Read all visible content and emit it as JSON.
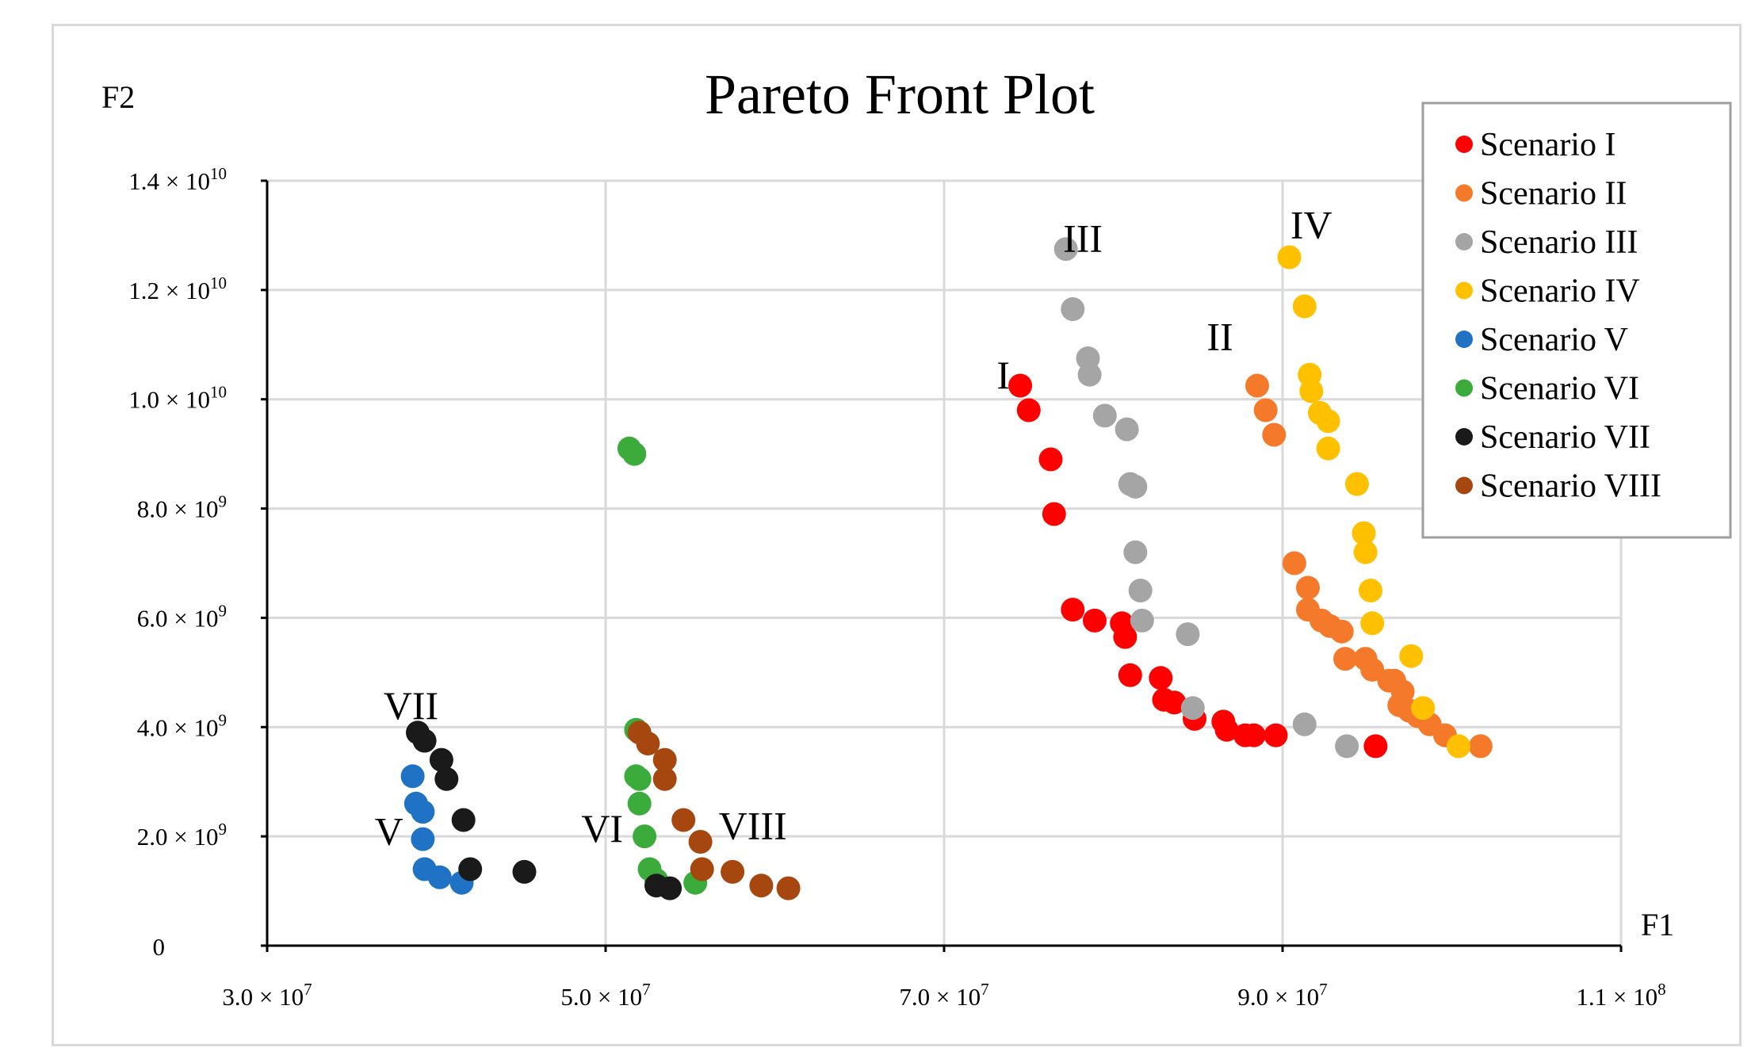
{
  "chart_data": {
    "type": "scatter",
    "title": "Pareto Front Plot",
    "xlabel": "F1",
    "ylabel": "F2",
    "xlim": [
      30000000,
      110000000
    ],
    "ylim": [
      0,
      14000000000
    ],
    "grid": true,
    "legend_position": "top-right",
    "x_ticks": [
      {
        "value": 30000000,
        "mant": "3.0 × 10",
        "exp": "7"
      },
      {
        "value": 50000000,
        "mant": "5.0 × 10",
        "exp": "7"
      },
      {
        "value": 70000000,
        "mant": "7.0 × 10",
        "exp": "7"
      },
      {
        "value": 90000000,
        "mant": "9.0 × 10",
        "exp": "7"
      },
      {
        "value": 110000000,
        "mant": "1.1 × 10",
        "exp": "8"
      }
    ],
    "y_ticks": [
      {
        "value": 0,
        "mant": "0",
        "exp": ""
      },
      {
        "value": 2000000000,
        "mant": "2.0 × 10",
        "exp": "9"
      },
      {
        "value": 4000000000,
        "mant": "4.0 × 10",
        "exp": "9"
      },
      {
        "value": 6000000000,
        "mant": "6.0 × 10",
        "exp": "9"
      },
      {
        "value": 8000000000,
        "mant": "8.0 × 10",
        "exp": "9"
      },
      {
        "value": 10000000000,
        "mant": "1.0 × 10",
        "exp": "10"
      },
      {
        "value": 12000000000,
        "mant": "1.2 × 10",
        "exp": "10"
      },
      {
        "value": 14000000000,
        "mant": "1.4 × 10",
        "exp": "10"
      }
    ],
    "series": [
      {
        "name": "Scenario I",
        "color": "#ff0000",
        "annotation": "I",
        "annotation_at": [
          73500000,
          10200000000
        ],
        "points": [
          [
            74500000,
            10250000000
          ],
          [
            75000000,
            9800000000
          ],
          [
            76300000,
            8900000000
          ],
          [
            76500000,
            7900000000
          ],
          [
            77600000,
            6150000000
          ],
          [
            78900000,
            5950000000
          ],
          [
            80500000,
            5900000000
          ],
          [
            80700000,
            5650000000
          ],
          [
            81000000,
            4950000000
          ],
          [
            82800000,
            4900000000
          ],
          [
            83000000,
            4500000000
          ],
          [
            83600000,
            4450000000
          ],
          [
            84800000,
            4150000000
          ],
          [
            86500000,
            4100000000
          ],
          [
            86700000,
            3950000000
          ],
          [
            87800000,
            3850000000
          ],
          [
            88300000,
            3850000000
          ],
          [
            89600000,
            3850000000
          ],
          [
            95500000,
            3650000000
          ]
        ]
      },
      {
        "name": "Scenario II",
        "color": "#f4792a",
        "annotation": "II",
        "annotation_at": [
          86300000,
          10900000000
        ],
        "points": [
          [
            88500000,
            10250000000
          ],
          [
            89000000,
            9800000000
          ],
          [
            89500000,
            9350000000
          ],
          [
            90700000,
            7000000000
          ],
          [
            91500000,
            6550000000
          ],
          [
            91500000,
            6150000000
          ],
          [
            92300000,
            5950000000
          ],
          [
            92800000,
            5850000000
          ],
          [
            93500000,
            5750000000
          ],
          [
            93700000,
            5250000000
          ],
          [
            94900000,
            5250000000
          ],
          [
            95300000,
            5050000000
          ],
          [
            96300000,
            4850000000
          ],
          [
            96600000,
            4850000000
          ],
          [
            96900000,
            4400000000
          ],
          [
            97100000,
            4650000000
          ],
          [
            97500000,
            4300000000
          ],
          [
            98000000,
            4200000000
          ],
          [
            98700000,
            4050000000
          ],
          [
            99600000,
            3850000000
          ],
          [
            101700000,
            3650000000
          ]
        ]
      },
      {
        "name": "Scenario III",
        "color": "#a5a5a5",
        "annotation": "III",
        "annotation_at": [
          78200000,
          12700000000
        ],
        "points": [
          [
            77200000,
            12750000000
          ],
          [
            77600000,
            11650000000
          ],
          [
            78500000,
            10750000000
          ],
          [
            78600000,
            10450000000
          ],
          [
            79500000,
            9700000000
          ],
          [
            80800000,
            9450000000
          ],
          [
            81000000,
            8450000000
          ],
          [
            81300000,
            8400000000
          ],
          [
            81300000,
            7200000000
          ],
          [
            81600000,
            6500000000
          ],
          [
            81700000,
            5950000000
          ],
          [
            84400000,
            5700000000
          ],
          [
            84700000,
            4350000000
          ],
          [
            91300000,
            4050000000
          ],
          [
            93800000,
            3650000000
          ]
        ]
      },
      {
        "name": "Scenario IV",
        "color": "#ffc000",
        "annotation": "IV",
        "annotation_at": [
          91700000,
          12950000000
        ],
        "points": [
          [
            90400000,
            12600000000
          ],
          [
            91300000,
            11700000000
          ],
          [
            91600000,
            10450000000
          ],
          [
            91700000,
            10150000000
          ],
          [
            92200000,
            9750000000
          ],
          [
            92700000,
            9600000000
          ],
          [
            92700000,
            9100000000
          ],
          [
            94400000,
            8450000000
          ],
          [
            94800000,
            7550000000
          ],
          [
            94900000,
            7200000000
          ],
          [
            95200000,
            6500000000
          ],
          [
            95300000,
            5900000000
          ],
          [
            97600000,
            5300000000
          ],
          [
            98300000,
            4350000000
          ],
          [
            100400000,
            3650000000
          ]
        ]
      },
      {
        "name": "Scenario V",
        "color": "#1f72c4",
        "annotation": "V",
        "annotation_at": [
          37200000,
          1850000000
        ],
        "points": [
          [
            38600000,
            3100000000
          ],
          [
            38800000,
            2600000000
          ],
          [
            39200000,
            2450000000
          ],
          [
            39200000,
            1950000000
          ],
          [
            39300000,
            1400000000
          ],
          [
            40200000,
            1250000000
          ],
          [
            41500000,
            1150000000
          ]
        ]
      },
      {
        "name": "Scenario VI",
        "color": "#3bac3b",
        "annotation": "VI",
        "annotation_at": [
          49800000,
          1900000000
        ],
        "points": [
          [
            51400000,
            9100000000
          ],
          [
            51700000,
            9000000000
          ],
          [
            51800000,
            3950000000
          ],
          [
            51800000,
            3100000000
          ],
          [
            52000000,
            3050000000
          ],
          [
            52000000,
            2600000000
          ],
          [
            52300000,
            2000000000
          ],
          [
            52600000,
            1400000000
          ],
          [
            53000000,
            1200000000
          ],
          [
            55300000,
            1150000000
          ]
        ]
      },
      {
        "name": "Scenario VII",
        "color": "#1a1a1a",
        "annotation": "VII",
        "annotation_at": [
          38500000,
          4150000000
        ],
        "points": [
          [
            38900000,
            3900000000
          ],
          [
            39300000,
            3750000000
          ],
          [
            40300000,
            3400000000
          ],
          [
            40600000,
            3050000000
          ],
          [
            41600000,
            2300000000
          ],
          [
            42000000,
            1400000000
          ],
          [
            45200000,
            1350000000
          ],
          [
            53000000,
            1100000000
          ],
          [
            53800000,
            1050000000
          ]
        ]
      },
      {
        "name": "Scenario VIII",
        "color": "#a5470f",
        "annotation": "VIII",
        "annotation_at": [
          58700000,
          1950000000
        ],
        "points": [
          [
            52000000,
            3900000000
          ],
          [
            52500000,
            3700000000
          ],
          [
            53500000,
            3400000000
          ],
          [
            53500000,
            3050000000
          ],
          [
            54600000,
            2300000000
          ],
          [
            55600000,
            1900000000
          ],
          [
            55700000,
            1400000000
          ],
          [
            57500000,
            1350000000
          ],
          [
            59200000,
            1100000000
          ],
          [
            60800000,
            1050000000
          ]
        ]
      }
    ]
  }
}
